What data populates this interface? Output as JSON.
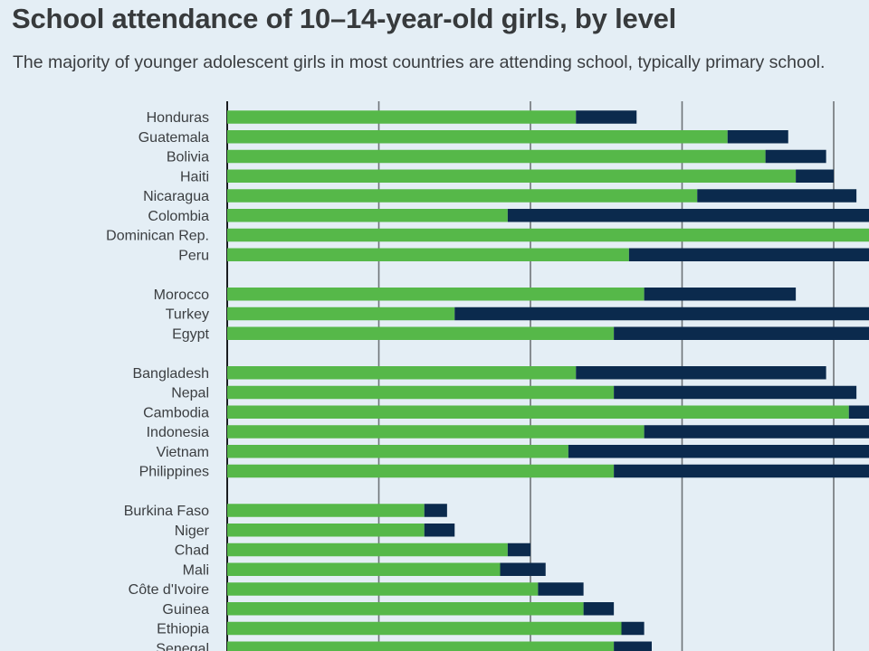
{
  "title": "School attendance of 10–14-year-old girls, by level",
  "subtitle": "The majority of younger adolescent girls in most countries are attending school, typically primary school.",
  "colors": {
    "primary": "#56b849",
    "secondary": "#0b2a4d",
    "grid": "#6e7377",
    "background": "#e4eef5"
  },
  "chart_data": {
    "type": "bar",
    "orientation": "horizontal",
    "stacked": true,
    "title": "School attendance of 10–14-year-old girls, by level",
    "subtitle": "The majority of younger adolescent girls in most countries are attending school, typically primary school.",
    "xlim": [
      0,
      100
    ],
    "grid": true,
    "groups": [
      [
        "Honduras",
        "Guatemala",
        "Bolivia",
        "Haiti",
        "Nicaragua",
        "Colombia",
        "Dominican Rep.",
        "Peru"
      ],
      [
        "Morocco",
        "Turkey",
        "Egypt"
      ],
      [
        "Bangladesh",
        "Nepal",
        "Cambodia",
        "Indonesia",
        "Vietnam",
        "Philippines"
      ],
      [
        "Burkina Faso",
        "Niger",
        "Chad",
        "Mali",
        "Côte d'Ivoire",
        "Guinea",
        "Ethiopia",
        "Senegal"
      ]
    ],
    "categories": [
      "Honduras",
      "Guatemala",
      "Bolivia",
      "Haiti",
      "Nicaragua",
      "Colombia",
      "Dominican Rep.",
      "Peru",
      "Morocco",
      "Turkey",
      "Egypt",
      "Bangladesh",
      "Nepal",
      "Cambodia",
      "Indonesia",
      "Vietnam",
      "Philippines",
      "Burkina Faso",
      "Niger",
      "Chad",
      "Mali",
      "Côte d'Ivoire",
      "Guinea",
      "Ethiopia",
      "Senegal"
    ],
    "series": [
      {
        "values": [
          46,
          66,
          71,
          75,
          62,
          37,
          88,
          53,
          55,
          30,
          51,
          46,
          51,
          82,
          55,
          45,
          51,
          26,
          26,
          37,
          36,
          41,
          47,
          52,
          51
        ]
      },
      {
        "values": [
          8,
          8,
          8,
          5,
          21,
          51,
          0,
          37,
          20,
          60,
          37,
          33,
          32,
          8,
          33,
          48,
          36,
          3,
          4,
          3,
          6,
          6,
          4,
          3,
          5
        ]
      }
    ]
  }
}
